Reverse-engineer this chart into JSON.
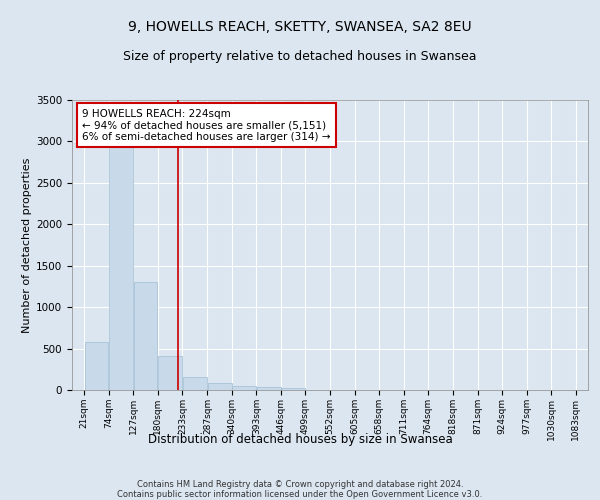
{
  "title1": "9, HOWELLS REACH, SKETTY, SWANSEA, SA2 8EU",
  "title2": "Size of property relative to detached houses in Swansea",
  "xlabel": "Distribution of detached houses by size in Swansea",
  "ylabel": "Number of detached properties",
  "footnote": "Contains HM Land Registry data © Crown copyright and database right 2024.\nContains public sector information licensed under the Open Government Licence v3.0.",
  "bar_edges": [
    21,
    74,
    127,
    180,
    233,
    287,
    340,
    393,
    446,
    499,
    552,
    605,
    658,
    711,
    764,
    818,
    871,
    924,
    977,
    1030,
    1083
  ],
  "bar_heights": [
    580,
    2950,
    1300,
    410,
    160,
    90,
    50,
    40,
    30,
    5,
    2,
    1,
    1,
    0,
    0,
    0,
    0,
    0,
    0,
    0
  ],
  "bar_color": "#c8daea",
  "bar_edge_color": "#a0bdd4",
  "property_sqm": 224,
  "property_line_color": "#cc0000",
  "annotation_text": "9 HOWELLS REACH: 224sqm\n← 94% of detached houses are smaller (5,151)\n6% of semi-detached houses are larger (314) →",
  "annotation_box_color": "#ffffff",
  "annotation_box_edge_color": "#cc0000",
  "ylim": [
    0,
    3500
  ],
  "yticks": [
    0,
    500,
    1000,
    1500,
    2000,
    2500,
    3000,
    3500
  ],
  "background_color": "#dce6f0",
  "plot_bg_color": "#dce6f0",
  "grid_color": "#ffffff",
  "title1_fontsize": 10,
  "title2_fontsize": 9,
  "xlabel_fontsize": 8.5,
  "ylabel_fontsize": 8,
  "annotation_fontsize": 7.5
}
